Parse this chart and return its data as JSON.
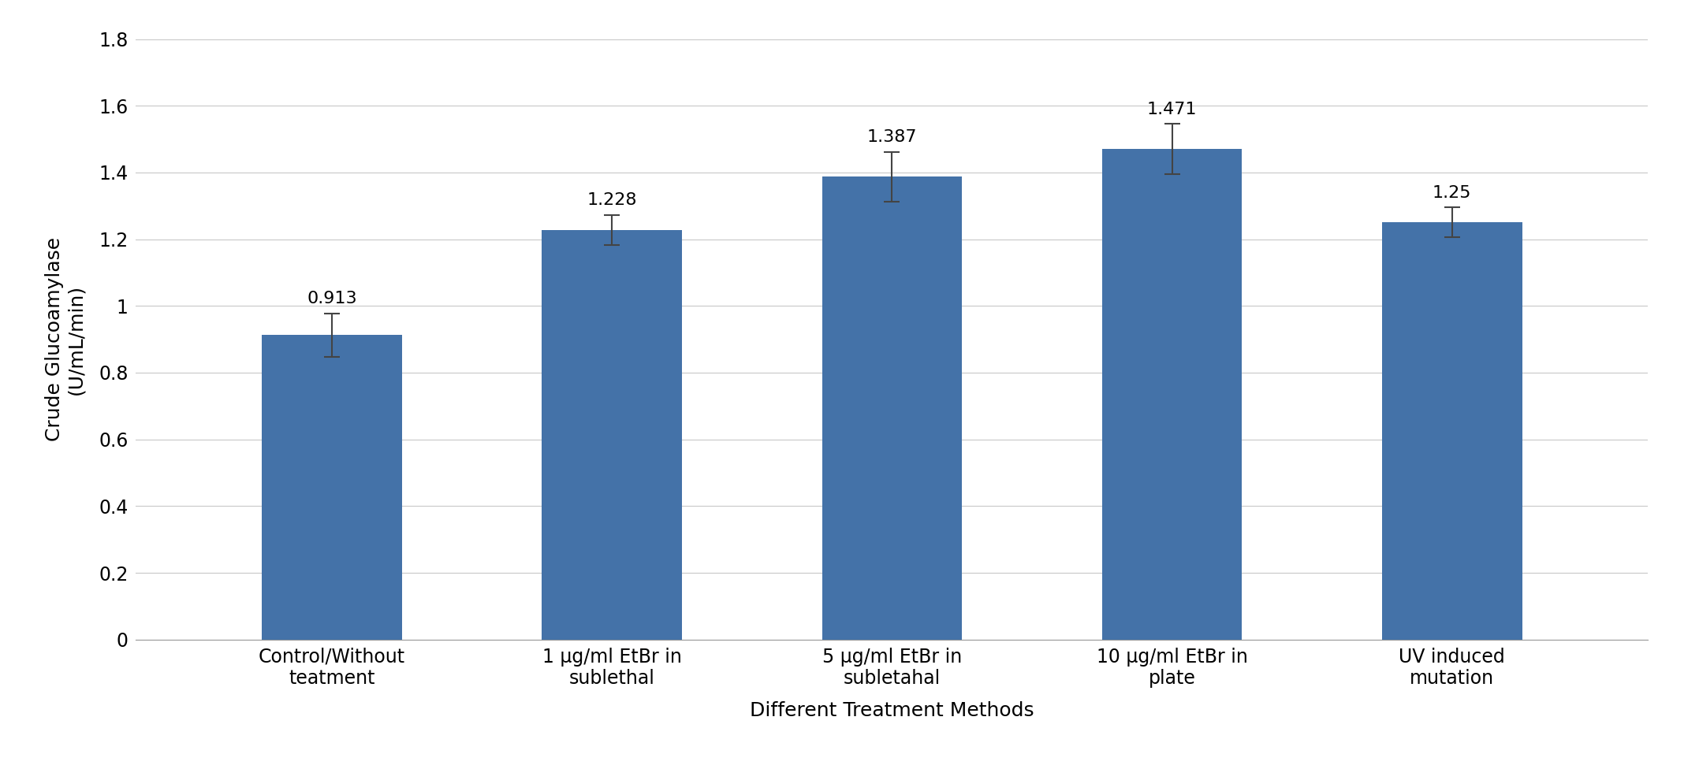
{
  "categories": [
    "Control/Without\nteatment",
    "1 μg/ml EtBr in\nsublethal",
    "5 μg/ml EtBr in\nsubletahal",
    "10 μg/ml EtBr in\nplate",
    "UV induced\nmutation"
  ],
  "values": [
    0.913,
    1.228,
    1.387,
    1.471,
    1.25
  ],
  "errors": [
    0.065,
    0.045,
    0.075,
    0.075,
    0.045
  ],
  "bar_color": "#4472a8",
  "ylabel": "Crude Glucoamylase\n(U/mL/min)",
  "xlabel": "Different Treatment Methods",
  "ylim": [
    0,
    1.8
  ],
  "ytick_values": [
    0,
    0.2,
    0.4,
    0.6,
    0.8,
    1.0,
    1.2,
    1.4,
    1.6,
    1.8
  ],
  "ytick_labels": [
    "0",
    "0.2",
    "0.4",
    "0.6",
    "0.8",
    "1",
    "1.2",
    "1.4",
    "1.6",
    "1.8"
  ],
  "bar_width": 0.5,
  "value_labels": [
    "0.913",
    "1.228",
    "1.387",
    "1.471",
    "1.25"
  ],
  "background_color": "#ffffff",
  "grid_color": "#c8c8c8",
  "label_fontsize": 18,
  "tick_fontsize": 17,
  "value_label_fontsize": 16
}
